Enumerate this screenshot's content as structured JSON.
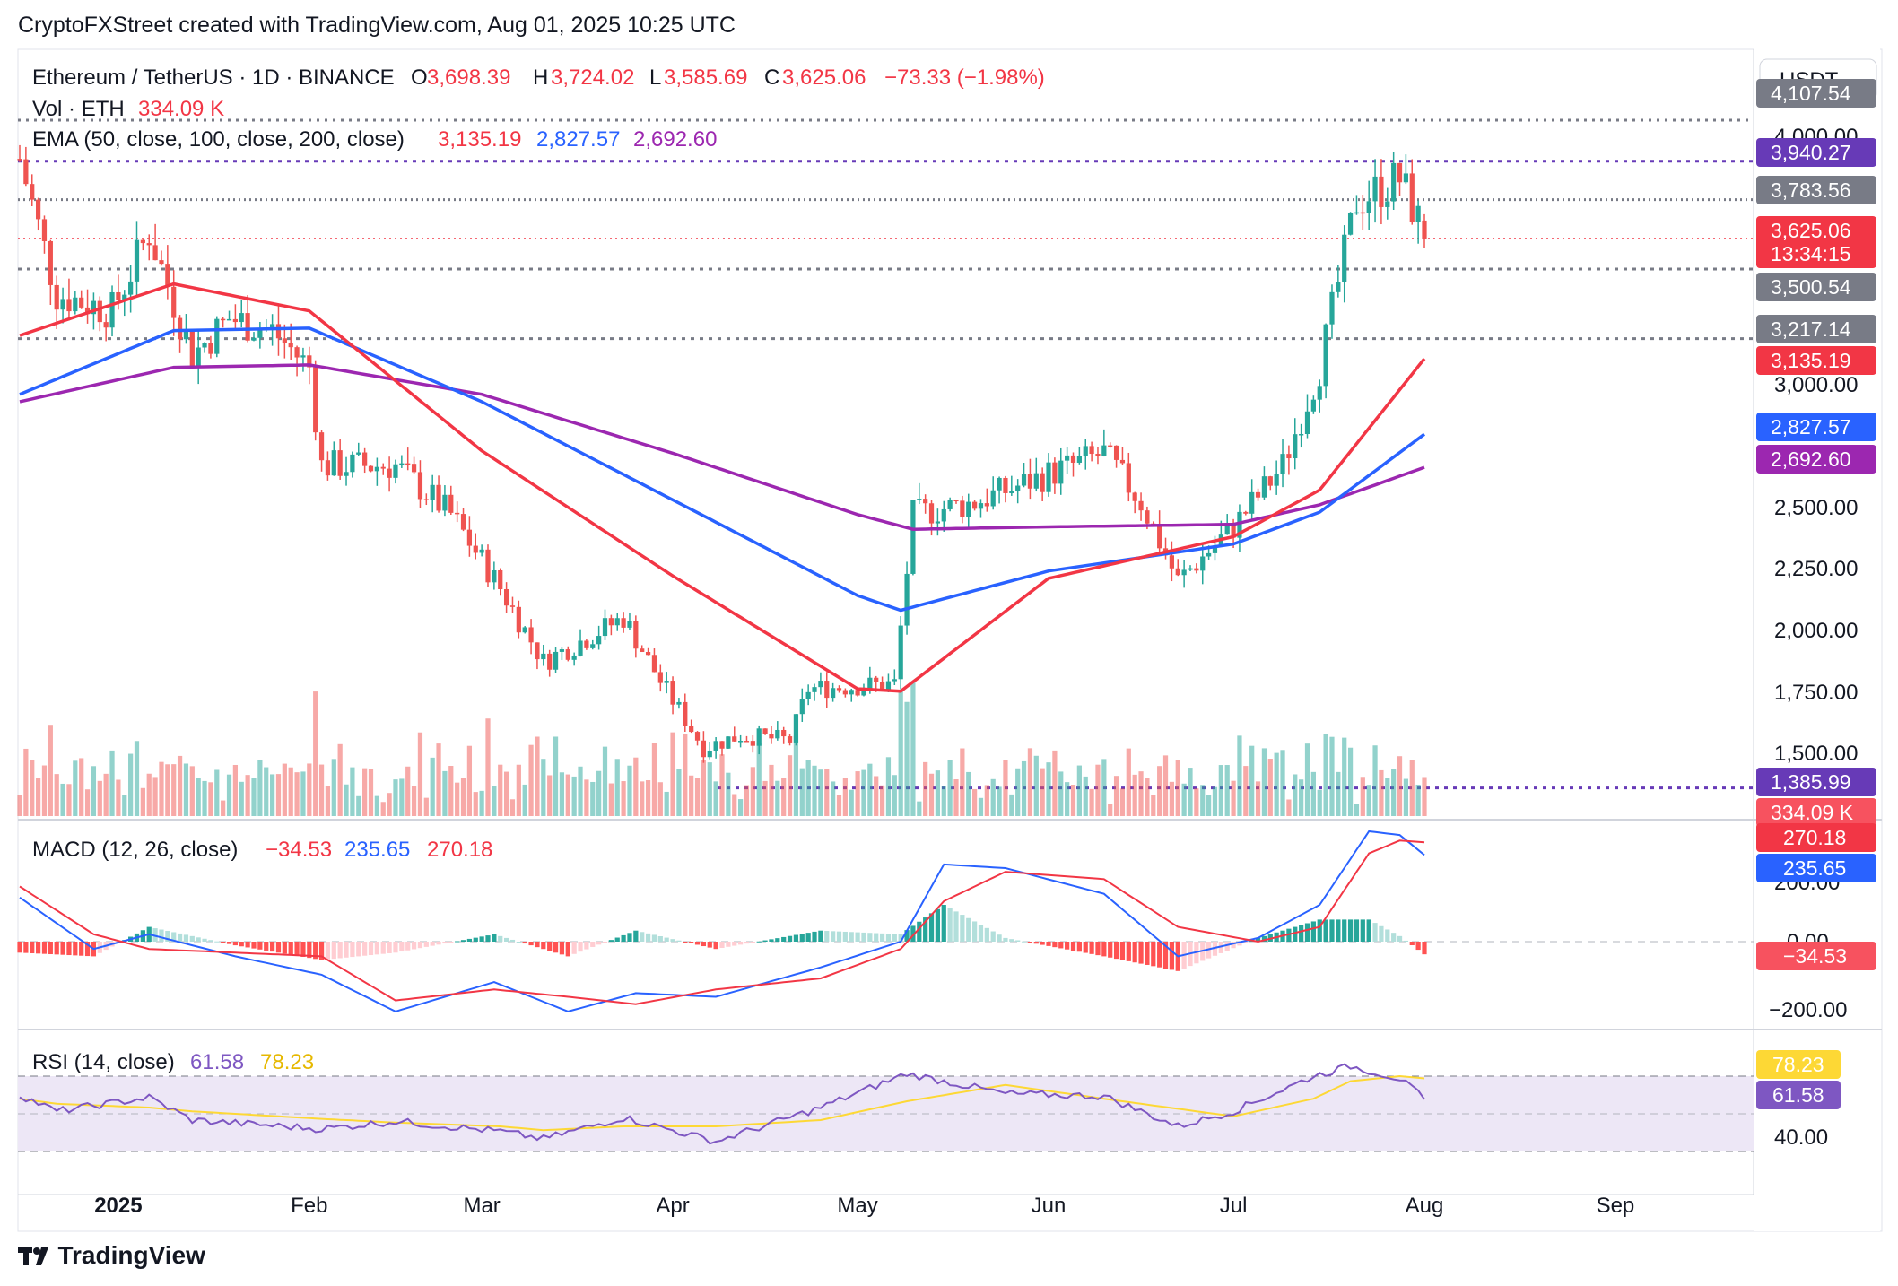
{
  "header": {
    "attribution": "CryptoFXStreet created with TradingView.com, Aug 01, 2025 10:25 UTC"
  },
  "legend": {
    "symbol": "Ethereum / TetherUS · 1D · BINANCE",
    "o_label": "O",
    "o_value": "3,698.39",
    "h_label": "H",
    "h_value": "3,724.02",
    "l_label": "L",
    "l_value": "3,585.69",
    "c_label": "C",
    "c_value": "3,625.06",
    "change": "−73.33 (−1.98%)",
    "vol_label": "Vol · ETH",
    "vol_value": "334.09 K",
    "ema_label": "EMA (50, close, 100, close, 200, close)",
    "ema50": "3,135.19",
    "ema100": "2,827.57",
    "ema200": "2,692.60",
    "macd_label": "MACD (12, 26, close)",
    "macd_hist": "−34.53",
    "macd_line": "235.65",
    "macd_signal": "270.18",
    "rsi_label": "RSI (14, close)",
    "rsi_value": "61.58",
    "rsi_ma": "78.23"
  },
  "currency_button": "USDT",
  "price_axis": {
    "ticks": [
      "4,000.00",
      "3,000.00",
      "2,500.00",
      "2,250.00",
      "2,000.00",
      "1,750.00",
      "1,500.00"
    ]
  },
  "macd_axis": {
    "ticks": [
      "200.00",
      "0.00",
      "−200.00"
    ]
  },
  "rsi_axis": {
    "ticks": [
      "40.00"
    ]
  },
  "time_axis": {
    "ticks": [
      "2025",
      "Feb",
      "Mar",
      "Apr",
      "May",
      "Jun",
      "Jul",
      "Aug",
      "Sep"
    ]
  },
  "price_tags": [
    {
      "label": "4,107.54",
      "bg": "#787b86"
    },
    {
      "label": "3,940.27",
      "bg": "#673ab7"
    },
    {
      "label": "3,783.56",
      "bg": "#787b86"
    },
    {
      "label": "3,625.06",
      "sub": "13:34:15",
      "bg": "#f23645"
    },
    {
      "label": "3,500.54",
      "bg": "#787b86"
    },
    {
      "label": "3,217.14",
      "bg": "#787b86"
    },
    {
      "label": "3,135.19",
      "bg": "#f23645"
    },
    {
      "label": "2,827.57",
      "bg": "#2962ff"
    },
    {
      "label": "2,692.60",
      "bg": "#9c27b0"
    },
    {
      "label": "1,385.99",
      "bg": "#673ab7"
    },
    {
      "label": "334.09 K",
      "bg": "#f7525f"
    }
  ],
  "macd_tags": [
    {
      "label": "270.18",
      "bg": "#f23645"
    },
    {
      "label": "235.65",
      "bg": "#2962ff"
    },
    {
      "label": "−34.53",
      "bg": "#f7525f"
    }
  ],
  "rsi_tags": [
    {
      "label": "78.23",
      "bg": "#fdd835",
      "fg": "#131722"
    },
    {
      "label": "61.58",
      "bg": "#7e57c2",
      "fg": "#ffffff"
    }
  ],
  "colors": {
    "up": "#26a69a",
    "down": "#ef5350",
    "ema50": "#f23645",
    "ema100": "#2962ff",
    "ema200": "#9c27b0",
    "rsi": "#7e57c2",
    "rsi_ma": "#fdd835",
    "band": "#ede7f6"
  },
  "footer": {
    "logo_text": "TradingView"
  },
  "chart_data": {
    "type": "candlestick",
    "title": "Ethereum / TetherUS · 1D · BINANCE",
    "ylim": [
      1250,
      4150
    ],
    "horizontal_levels": [
      4107.54,
      3940.27,
      3783.56,
      3625.06,
      3500.54,
      3217.14,
      1385.99
    ],
    "anchors": [
      {
        "date": "2024-12-16",
        "close": 3950
      },
      {
        "date": "2024-12-22",
        "close": 3400
      },
      {
        "date": "2024-12-31",
        "close": 3330
      },
      {
        "date": "2025-01-06",
        "close": 3650
      },
      {
        "date": "2025-01-13",
        "close": 3150
      },
      {
        "date": "2025-01-19",
        "close": 3300
      },
      {
        "date": "2025-01-26",
        "close": 3250
      },
      {
        "date": "2025-02-01",
        "close": 3100
      },
      {
        "date": "2025-02-03",
        "close": 2700
      },
      {
        "date": "2025-02-15",
        "close": 2700
      },
      {
        "date": "2025-02-24",
        "close": 2500
      },
      {
        "date": "2025-03-04",
        "close": 2200
      },
      {
        "date": "2025-03-11",
        "close": 1900
      },
      {
        "date": "2025-03-24",
        "close": 2080
      },
      {
        "date": "2025-03-30",
        "close": 1820
      },
      {
        "date": "2025-04-06",
        "close": 1550
      },
      {
        "date": "2025-04-12",
        "close": 1600
      },
      {
        "date": "2025-04-20",
        "close": 1580
      },
      {
        "date": "2025-04-23",
        "close": 1790
      },
      {
        "date": "2025-05-07",
        "close": 1810
      },
      {
        "date": "2025-05-10",
        "close": 2500
      },
      {
        "date": "2025-05-20",
        "close": 2550
      },
      {
        "date": "2025-06-10",
        "close": 2750
      },
      {
        "date": "2025-06-16",
        "close": 2550
      },
      {
        "date": "2025-06-22",
        "close": 2230
      },
      {
        "date": "2025-07-01",
        "close": 2450
      },
      {
        "date": "2025-07-09",
        "close": 2700
      },
      {
        "date": "2025-07-15",
        "close": 3100
      },
      {
        "date": "2025-07-21",
        "close": 3780
      },
      {
        "date": "2025-07-28",
        "close": 3870
      },
      {
        "date": "2025-07-31",
        "close": 3698.39
      },
      {
        "date": "2025-08-01",
        "close": 3625.06
      }
    ],
    "ema50_anchors": [
      {
        "date": "2024-12-16",
        "value": 3230
      },
      {
        "date": "2025-01-10",
        "value": 3440
      },
      {
        "date": "2025-02-01",
        "value": 3330
      },
      {
        "date": "2025-03-01",
        "value": 2760
      },
      {
        "date": "2025-04-01",
        "value": 2250
      },
      {
        "date": "2025-05-01",
        "value": 1790
      },
      {
        "date": "2025-05-08",
        "value": 1780
      },
      {
        "date": "2025-06-01",
        "value": 2240
      },
      {
        "date": "2025-07-01",
        "value": 2410
      },
      {
        "date": "2025-07-15",
        "value": 2600
      },
      {
        "date": "2025-08-01",
        "value": 3135.19
      }
    ],
    "ema100_anchors": [
      {
        "date": "2024-12-16",
        "value": 2990
      },
      {
        "date": "2025-01-10",
        "value": 3250
      },
      {
        "date": "2025-02-01",
        "value": 3260
      },
      {
        "date": "2025-03-01",
        "value": 2960
      },
      {
        "date": "2025-04-01",
        "value": 2560
      },
      {
        "date": "2025-05-01",
        "value": 2170
      },
      {
        "date": "2025-05-08",
        "value": 2110
      },
      {
        "date": "2025-06-01",
        "value": 2270
      },
      {
        "date": "2025-07-01",
        "value": 2380
      },
      {
        "date": "2025-07-15",
        "value": 2510
      },
      {
        "date": "2025-08-01",
        "value": 2827.57
      }
    ],
    "ema200_anchors": [
      {
        "date": "2024-12-16",
        "value": 2960
      },
      {
        "date": "2025-01-10",
        "value": 3100
      },
      {
        "date": "2025-02-01",
        "value": 3110
      },
      {
        "date": "2025-03-01",
        "value": 2990
      },
      {
        "date": "2025-04-01",
        "value": 2750
      },
      {
        "date": "2025-05-01",
        "value": 2500
      },
      {
        "date": "2025-05-10",
        "value": 2440
      },
      {
        "date": "2025-06-01",
        "value": 2450
      },
      {
        "date": "2025-07-01",
        "value": 2460
      },
      {
        "date": "2025-07-15",
        "value": 2540
      },
      {
        "date": "2025-08-01",
        "value": 2692.6
      }
    ],
    "macd_anchors": [
      {
        "date": "2024-12-16",
        "macd": 120,
        "signal": 150
      },
      {
        "date": "2024-12-28",
        "macd": -20,
        "signal": 20
      },
      {
        "date": "2025-01-06",
        "macd": 20,
        "signal": -20
      },
      {
        "date": "2025-01-20",
        "macd": -40,
        "signal": -30
      },
      {
        "date": "2025-02-03",
        "macd": -90,
        "signal": -40
      },
      {
        "date": "2025-02-15",
        "macd": -190,
        "signal": -160
      },
      {
        "date": "2025-03-03",
        "macd": -110,
        "signal": -130
      },
      {
        "date": "2025-03-15",
        "macd": -190,
        "signal": -150
      },
      {
        "date": "2025-03-26",
        "macd": -140,
        "signal": -170
      },
      {
        "date": "2025-04-08",
        "macd": -150,
        "signal": -130
      },
      {
        "date": "2025-04-25",
        "macd": -70,
        "signal": -100
      },
      {
        "date": "2025-05-08",
        "macd": 0,
        "signal": -20
      },
      {
        "date": "2025-05-15",
        "macd": 210,
        "signal": 110
      },
      {
        "date": "2025-05-25",
        "macd": 200,
        "signal": 190
      },
      {
        "date": "2025-06-10",
        "macd": 130,
        "signal": 170
      },
      {
        "date": "2025-06-22",
        "macd": -40,
        "signal": 40
      },
      {
        "date": "2025-07-05",
        "macd": 10,
        "signal": 0
      },
      {
        "date": "2025-07-15",
        "macd": 100,
        "signal": 40
      },
      {
        "date": "2025-07-23",
        "macd": 300,
        "signal": 240
      },
      {
        "date": "2025-07-28",
        "macd": 290,
        "signal": 275
      },
      {
        "date": "2025-08-01",
        "macd": 235.65,
        "signal": 270.18
      }
    ],
    "rsi_anchors": [
      {
        "date": "2024-12-16",
        "rsi": 65,
        "ma": 62
      },
      {
        "date": "2024-12-22",
        "rsi": 52,
        "ma": 58
      },
      {
        "date": "2025-01-06",
        "rsi": 63,
        "ma": 55
      },
      {
        "date": "2025-01-13",
        "rsi": 45,
        "ma": 52
      },
      {
        "date": "2025-02-03",
        "rsi": 38,
        "ma": 46
      },
      {
        "date": "2025-02-15",
        "rsi": 44,
        "ma": 43
      },
      {
        "date": "2025-03-04",
        "rsi": 36,
        "ma": 40
      },
      {
        "date": "2025-03-11",
        "rsi": 30,
        "ma": 37
      },
      {
        "date": "2025-03-24",
        "rsi": 47,
        "ma": 40
      },
      {
        "date": "2025-04-08",
        "rsi": 28,
        "ma": 40
      },
      {
        "date": "2025-04-25",
        "rsi": 55,
        "ma": 45
      },
      {
        "date": "2025-05-09",
        "rsi": 82,
        "ma": 60
      },
      {
        "date": "2025-05-25",
        "rsi": 66,
        "ma": 73
      },
      {
        "date": "2025-06-10",
        "rsi": 64,
        "ma": 62
      },
      {
        "date": "2025-06-22",
        "rsi": 40,
        "ma": 54
      },
      {
        "date": "2025-07-01",
        "rsi": 52,
        "ma": 48
      },
      {
        "date": "2025-07-14",
        "rsi": 80,
        "ma": 62
      },
      {
        "date": "2025-07-20",
        "rsi": 88,
        "ma": 76
      },
      {
        "date": "2025-07-28",
        "rsi": 78,
        "ma": 80
      },
      {
        "date": "2025-08-01",
        "rsi": 61.58,
        "ma": 78.23
      }
    ]
  }
}
